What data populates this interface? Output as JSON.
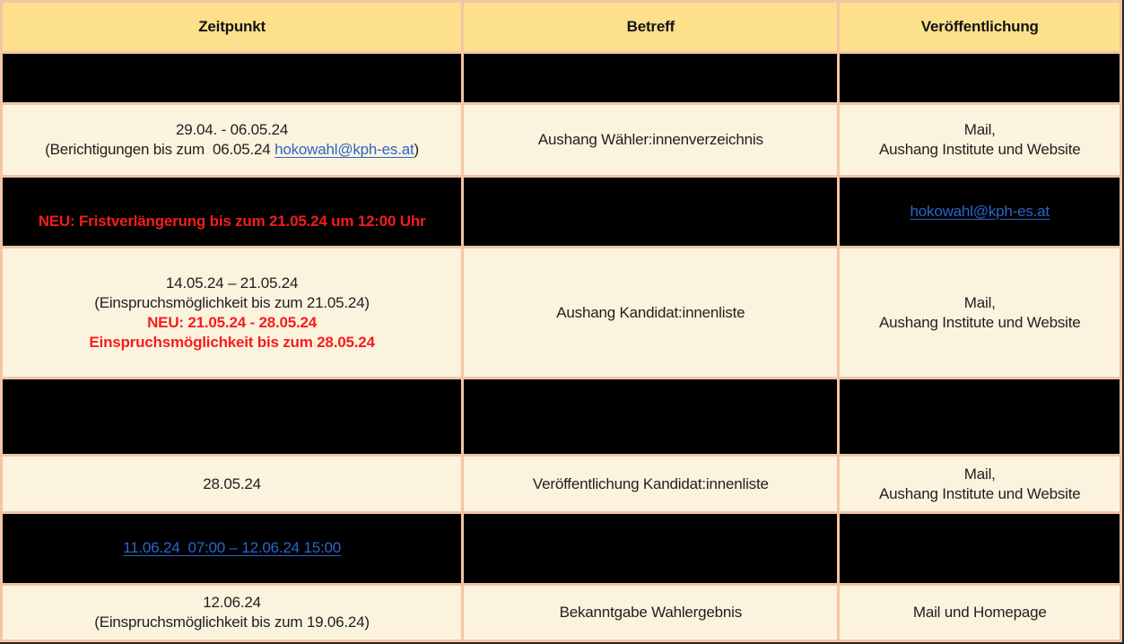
{
  "header": {
    "columns": [
      "Zeitpunkt",
      "Betreff",
      "Veröffentlichung"
    ]
  },
  "colors": {
    "header_bg": "#FCE08C",
    "cream_bg": "#FCF3DE",
    "black_bg": "#000000",
    "border": "#F3C5A5",
    "outer_edge": "#262626",
    "text": "#1F1F1F",
    "red": "#F51D1D",
    "link": "#2A66C8"
  },
  "rows": [
    {
      "variant": "black",
      "cells": [
        {
          "lines": []
        },
        {
          "lines": []
        },
        {
          "lines": []
        }
      ]
    },
    {
      "variant": "cream",
      "cells": [
        {
          "lines": [
            [
              {
                "t": "29.04. - 06.05.24",
                "s": "normal"
              }
            ],
            [
              {
                "t": "(Berichtigungen bis zum  06.05.24 ",
                "s": "normal"
              },
              {
                "t": "hokowahl@kph-es.at",
                "s": "link",
                "name": "email-link"
              },
              {
                "t": ")",
                "s": "normal"
              }
            ]
          ]
        },
        {
          "lines": [
            [
              {
                "t": "Aushang Wähler:innenverzeichnis",
                "s": "normal"
              }
            ]
          ]
        },
        {
          "lines": [
            [
              {
                "t": "Mail,",
                "s": "normal"
              }
            ],
            [
              {
                "t": "Aushang Institute und Website",
                "s": "normal"
              }
            ]
          ]
        }
      ]
    },
    {
      "variant": "black",
      "cells": [
        {
          "lines": [
            [
              {
                "t": "",
                "s": "spacer"
              }
            ],
            [
              {
                "t": "NEU: Fristverlängerung bis zum 21.05.24 um 12:00 Uhr",
                "s": "red"
              }
            ]
          ]
        },
        {
          "lines": []
        },
        {
          "lines": [
            [
              {
                "t": "hokowahl@kph-es.at",
                "s": "link",
                "name": "email-link"
              }
            ]
          ]
        }
      ]
    },
    {
      "variant": "cream",
      "cells": [
        {
          "lines": [
            [
              {
                "t": "14.05.24 – 21.05.24",
                "s": "normal"
              }
            ],
            [
              {
                "t": "(Einspruchsmöglichkeit bis zum 21.05.24)",
                "s": "normal"
              }
            ],
            [
              {
                "t": "NEU: 21.05.24 - 28.05.24",
                "s": "red"
              }
            ],
            [
              {
                "t": "Einspruchsmöglichkeit bis zum 28.05.24",
                "s": "red"
              }
            ]
          ]
        },
        {
          "lines": [
            [
              {
                "t": "Aushang Kandidat:innenliste",
                "s": "normal"
              }
            ]
          ]
        },
        {
          "lines": [
            [
              {
                "t": "Mail,",
                "s": "normal"
              }
            ],
            [
              {
                "t": "Aushang Institute und Website",
                "s": "normal"
              }
            ]
          ]
        }
      ]
    },
    {
      "variant": "black",
      "cells": [
        {
          "lines": []
        },
        {
          "lines": []
        },
        {
          "lines": []
        }
      ]
    },
    {
      "variant": "cream",
      "cells": [
        {
          "lines": [
            [
              {
                "t": "28.05.24",
                "s": "normal"
              }
            ]
          ]
        },
        {
          "lines": [
            [
              {
                "t": "Veröffentlichung Kandidat:innenliste",
                "s": "normal"
              }
            ]
          ]
        },
        {
          "lines": [
            [
              {
                "t": "Mail,",
                "s": "normal"
              }
            ],
            [
              {
                "t": "Aushang Institute und Website",
                "s": "normal"
              }
            ]
          ]
        }
      ]
    },
    {
      "variant": "black",
      "cells": [
        {
          "lines": [
            [
              {
                "t": "11.06.24  07:00 – 12.06.24 15:00",
                "s": "link",
                "name": "voting-period-link"
              }
            ]
          ]
        },
        {
          "lines": []
        },
        {
          "lines": []
        }
      ]
    },
    {
      "variant": "cream",
      "cells": [
        {
          "lines": [
            [
              {
                "t": "12.06.24",
                "s": "normal"
              }
            ],
            [
              {
                "t": "(Einspruchsmöglichkeit bis zum 19.06.24)",
                "s": "normal"
              }
            ]
          ]
        },
        {
          "lines": [
            [
              {
                "t": "Bekanntgabe Wahlergebnis",
                "s": "normal"
              }
            ]
          ]
        },
        {
          "lines": [
            [
              {
                "t": "Mail und Homepage",
                "s": "normal"
              }
            ]
          ]
        }
      ]
    }
  ]
}
